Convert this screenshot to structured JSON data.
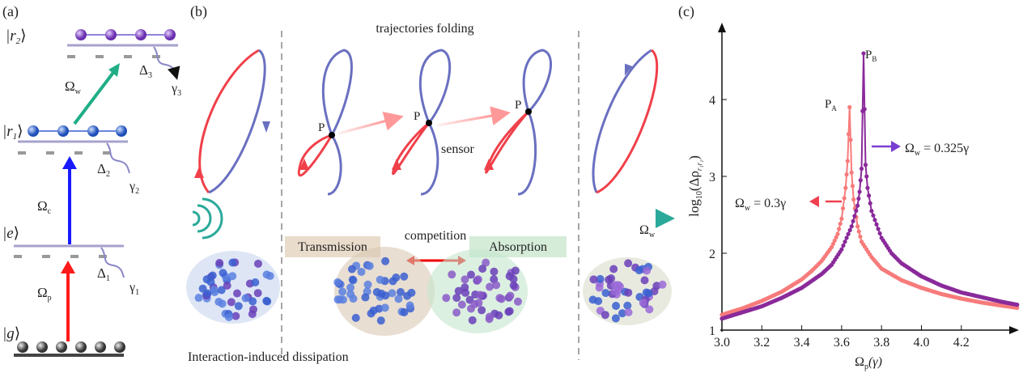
{
  "panel_a": {
    "label": "(a)",
    "states": [
      {
        "name": "r2",
        "text": "|r",
        "sub": "2",
        "close": "⟩"
      },
      {
        "name": "r1",
        "text": "|r",
        "sub": "1",
        "close": "⟩"
      },
      {
        "name": "e",
        "text": "|e",
        "sub": "",
        "close": "⟩"
      },
      {
        "name": "g",
        "text": "|g",
        "sub": "",
        "close": "⟩"
      }
    ],
    "fields": [
      {
        "main": "Ω",
        "sub": "w",
        "color": "#1fae86"
      },
      {
        "main": "Ω",
        "sub": "c",
        "color": "#1a1aff"
      },
      {
        "main": "Ω",
        "sub": "p",
        "color": "#ff1a1a"
      }
    ],
    "detunings": [
      {
        "main": "Δ",
        "sub": "3"
      },
      {
        "main": "Δ",
        "sub": "2"
      },
      {
        "main": "Δ",
        "sub": "1"
      }
    ],
    "decays": [
      {
        "main": "γ",
        "sub": "3"
      },
      {
        "main": "γ",
        "sub": "2"
      },
      {
        "main": "γ",
        "sub": "1"
      }
    ]
  },
  "panel_b": {
    "label": "(b)",
    "title": "trajectories folding",
    "point_label": "P",
    "sensor": "sensor",
    "competition": "competition",
    "axis_label": {
      "main": "Ω",
      "sub": "w"
    },
    "transmission": "Transmission",
    "absorption": "Absorption",
    "dissipation": "Interaction-induced dissipation",
    "colors": {
      "red": "#f0404a",
      "blue": "#6a70c0",
      "teal": "#2aa99a",
      "transmission_bg": "#e9dccb",
      "absorption_bg": "#d5ecd9"
    }
  },
  "panel_c": {
    "label": "(c)",
    "chart_data": {
      "type": "line",
      "xlabel": {
        "main": "Ω",
        "sub": "p",
        "rest": "(γ)"
      },
      "ylabel": {
        "main": "log",
        "sub": "10",
        "rest": "(Δρ",
        "sub2": "r₁r₁",
        "end": ")"
      },
      "xlim": [
        3.0,
        4.48
      ],
      "ylim": [
        1,
        4.95
      ],
      "xticks": [
        "3.0",
        "3.2",
        "3.4",
        "3.6",
        "3.8",
        "4.0",
        "4.2"
      ],
      "yticks": [
        "1",
        "2",
        "3",
        "4"
      ],
      "grid": false,
      "series": [
        {
          "name": "Ωw = 0.3γ",
          "legend": {
            "main": "Ω",
            "sub": "w",
            "rest": " = 0.3γ"
          },
          "color": "#f77b7b",
          "peak_label": {
            "main": "P",
            "sub": "A"
          },
          "x": [
            3.0,
            3.1,
            3.2,
            3.3,
            3.4,
            3.45,
            3.5,
            3.55,
            3.58,
            3.6,
            3.62,
            3.63,
            3.64,
            3.65,
            3.66,
            3.68,
            3.7,
            3.75,
            3.8,
            3.9,
            4.0,
            4.1,
            4.2,
            4.3,
            4.4,
            4.48
          ],
          "y": [
            1.2,
            1.28,
            1.38,
            1.5,
            1.66,
            1.77,
            1.9,
            2.08,
            2.25,
            2.45,
            2.85,
            3.2,
            3.9,
            3.05,
            2.7,
            2.35,
            2.15,
            1.95,
            1.8,
            1.65,
            1.55,
            1.47,
            1.41,
            1.36,
            1.32,
            1.29
          ]
        },
        {
          "name": "Ωw = 0.325γ",
          "legend": {
            "main": "Ω",
            "sub": "w",
            "rest": " = 0.325γ"
          },
          "color": "#8a2a9a",
          "peak_label": {
            "main": "P",
            "sub": "B"
          },
          "x": [
            3.0,
            3.1,
            3.2,
            3.3,
            3.4,
            3.5,
            3.55,
            3.6,
            3.65,
            3.68,
            3.69,
            3.7,
            3.71,
            3.72,
            3.73,
            3.75,
            3.8,
            3.85,
            3.9,
            4.0,
            4.1,
            4.2,
            4.3,
            4.4,
            4.48
          ],
          "y": [
            1.15,
            1.23,
            1.31,
            1.42,
            1.55,
            1.73,
            1.85,
            2.05,
            2.35,
            2.62,
            2.8,
            3.1,
            4.6,
            3.15,
            2.85,
            2.55,
            2.2,
            2.0,
            1.87,
            1.7,
            1.58,
            1.49,
            1.43,
            1.37,
            1.33
          ]
        }
      ]
    }
  }
}
